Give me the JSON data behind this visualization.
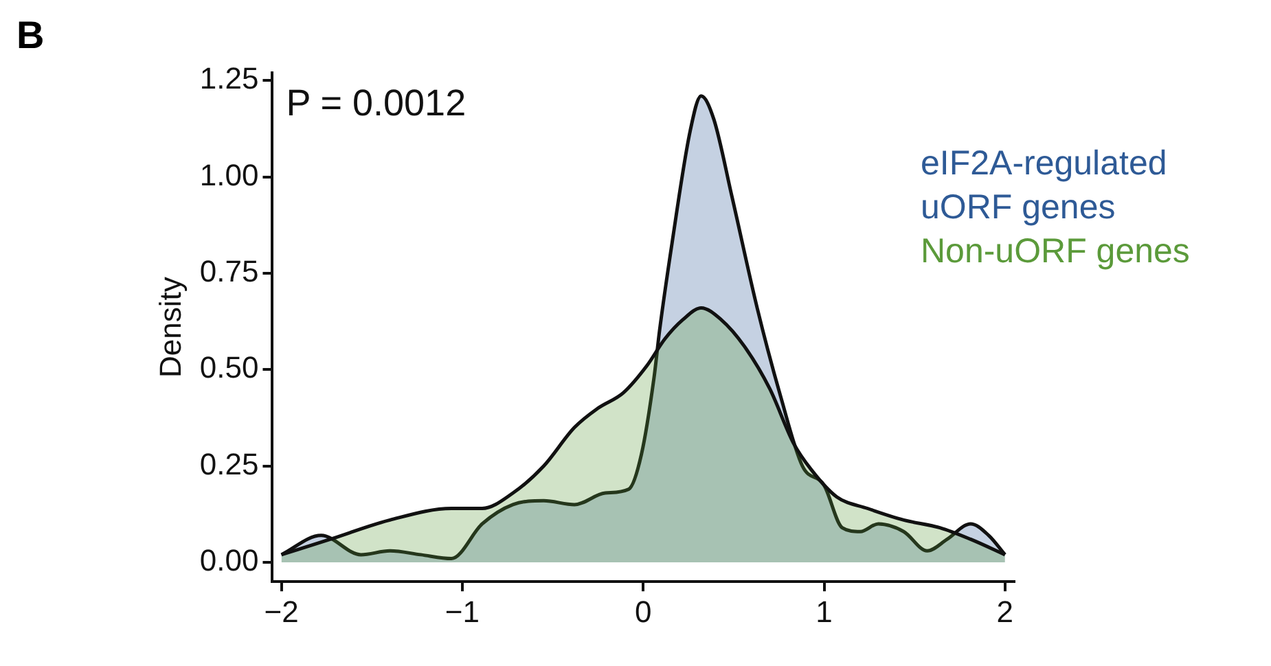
{
  "chart_data": {
    "type": "area",
    "title": "B",
    "ylabel": "Density",
    "annotations": [
      "P = 0.0012"
    ],
    "legend": "right",
    "xlim": [
      -2.05,
      2.05
    ],
    "xticks": [
      {
        "value": -2,
        "label": "−2"
      },
      {
        "value": -1,
        "label": "−1"
      },
      0,
      1,
      2
    ],
    "ylim": [
      -0.05,
      1.27
    ],
    "yticks": [
      {
        "value": 0,
        "label": "0.00"
      },
      0.25,
      {
        "value": 0.5,
        "label": "0.50"
      },
      0.75,
      {
        "value": 1,
        "label": "1.00"
      },
      1.25
    ],
    "series": [
      {
        "name": "eIF2A-regulated uORF genes",
        "color": "#2e5a96",
        "x": [
          -2,
          -1.78,
          -1.56,
          -1.4,
          -1.23,
          -1.06,
          -0.89,
          -0.72,
          -0.55,
          -0.38,
          -0.21,
          -0.08,
          -0.01,
          0.06,
          0.09,
          0.16,
          0.26,
          0.32,
          0.39,
          0.49,
          0.63,
          0.76,
          0.88,
          1,
          1.1,
          1.2,
          1.3,
          1.44,
          1.57,
          1.68,
          1.81,
          1.91,
          2
        ],
        "values": [
          0.02,
          0.07,
          0.02,
          0.03,
          0.02,
          0.01,
          0.1,
          0.15,
          0.16,
          0.15,
          0.18,
          0.19,
          0.28,
          0.48,
          0.6,
          0.83,
          1.12,
          1.21,
          1.15,
          0.95,
          0.66,
          0.43,
          0.25,
          0.2,
          0.09,
          0.08,
          0.1,
          0.08,
          0.03,
          0.06,
          0.1,
          0.07,
          0.02
        ]
      },
      {
        "name": "Non-uORF genes",
        "color": "#5b9a3a",
        "x": [
          -2,
          -1.73,
          -1.4,
          -1.06,
          -0.89,
          -0.72,
          -0.55,
          -0.38,
          -0.25,
          -0.11,
          0.02,
          0.12,
          0.22,
          0.32,
          0.43,
          0.56,
          0.7,
          0.83,
          0.93,
          1.07,
          1.24,
          1.44,
          1.64,
          1.81,
          2
        ],
        "values": [
          0.02,
          0.06,
          0.11,
          0.14,
          0.14,
          0.18,
          0.25,
          0.35,
          0.4,
          0.44,
          0.51,
          0.58,
          0.63,
          0.66,
          0.63,
          0.56,
          0.45,
          0.31,
          0.24,
          0.17,
          0.14,
          0.11,
          0.09,
          0.06,
          0.02
        ]
      }
    ]
  }
}
